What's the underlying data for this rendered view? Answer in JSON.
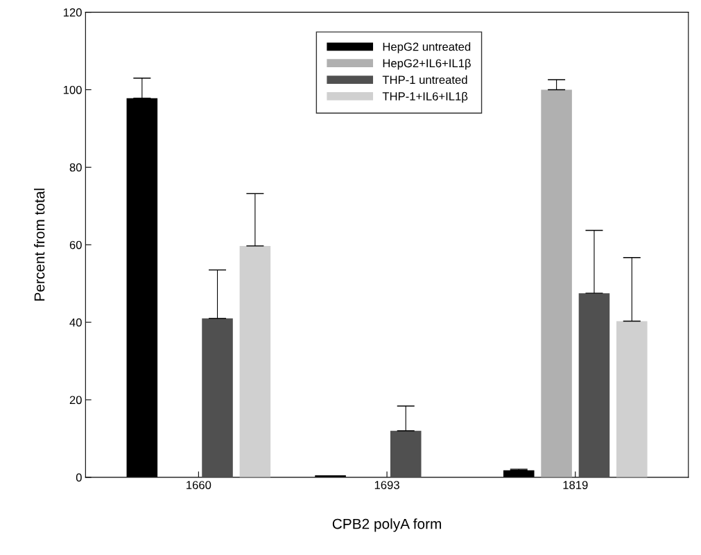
{
  "chart_data": {
    "type": "bar",
    "xlabel": "CPB2 polyA form",
    "ylabel": "Percent from total",
    "categories": [
      "1660",
      "1693",
      "1819"
    ],
    "series": [
      {
        "name": "HepG2 untreated",
        "color": "#000000",
        "values": [
          97.8,
          0.5,
          1.8
        ],
        "errors": [
          [
            97.8,
            103
          ],
          null,
          [
            1.8,
            2.1
          ]
        ]
      },
      {
        "name": "HepG2+IL6+IL1β",
        "color": "#b0b0b0",
        "values": [
          null,
          null,
          100
        ],
        "errors": [
          null,
          null,
          [
            100,
            102.6
          ]
        ]
      },
      {
        "name": "THP-1 untreated",
        "color": "#505050",
        "values": [
          41,
          12,
          47.5
        ],
        "errors": [
          [
            41,
            53.5
          ],
          [
            12,
            18.4
          ],
          [
            47.5,
            63.7
          ]
        ]
      },
      {
        "name": "THP-1+IL6+IL1β",
        "color": "#d0d0d0",
        "values": [
          59.7,
          null,
          40.3
        ],
        "errors": [
          [
            59.7,
            73.2
          ],
          null,
          [
            40.3,
            56.7
          ]
        ]
      }
    ],
    "ylim": [
      0,
      120
    ],
    "yticks": [
      0,
      20,
      40,
      60,
      80,
      100,
      120
    ],
    "grid": false,
    "legend": "top"
  }
}
